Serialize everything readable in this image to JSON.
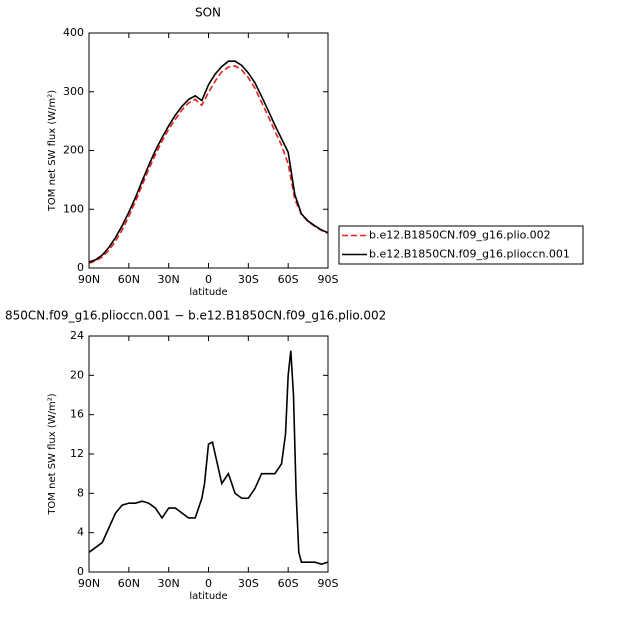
{
  "chart_data": [
    {
      "type": "line",
      "title": "SON",
      "xlabel": "latitude",
      "ylabel": "TOM net SW flux (W/m²)",
      "x": [
        90,
        85,
        80,
        75,
        70,
        65,
        60,
        55,
        50,
        45,
        40,
        35,
        30,
        25,
        20,
        15,
        10,
        5,
        0,
        -5,
        -10,
        -15,
        -20,
        -25,
        -30,
        -35,
        -40,
        -45,
        -50,
        -55,
        -60,
        -65,
        -70,
        -75,
        -80,
        -85,
        -90
      ],
      "series": [
        {
          "name": "b.e12.B1850CN.f09_g16.plio.002",
          "color": "#e8211c",
          "style": "dashed",
          "values": [
            8,
            12,
            19,
            30,
            46,
            65,
            88,
            113,
            141,
            168,
            193,
            216,
            236,
            253,
            269,
            281,
            287,
            277,
            299,
            318,
            334,
            342,
            344,
            337,
            324,
            306,
            282,
            258,
            233,
            209,
            177,
            117,
            91,
            79,
            71,
            64,
            59
          ]
        },
        {
          "name": "b.e12.B1850CN.f09_g16.plioccn.001",
          "color": "#000000",
          "style": "solid",
          "values": [
            10,
            14,
            22,
            35,
            52,
            72,
            95,
            120,
            148,
            175,
            200,
            222,
            242,
            260,
            275,
            287,
            293,
            285,
            312,
            330,
            343,
            352,
            352,
            345,
            332,
            315,
            292,
            268,
            243,
            220,
            197,
            125,
            92,
            80,
            72,
            65,
            60
          ]
        }
      ],
      "xlim": [
        90,
        -90
      ],
      "xticks": [
        {
          "value": 90,
          "label": "90N"
        },
        {
          "value": 60,
          "label": "60N"
        },
        {
          "value": 30,
          "label": "30N"
        },
        0,
        {
          "value": -30,
          "label": "30S"
        },
        {
          "value": -60,
          "label": "60S"
        },
        {
          "value": -90,
          "label": "90S"
        }
      ],
      "ylim": [
        0,
        400
      ],
      "yticks": [
        0,
        100,
        200,
        300,
        400
      ],
      "legend": "outside-right"
    },
    {
      "type": "line",
      "title": "850CN.f09_g16.plioccn.001 − b.e12.B1850CN.f09_g16.plio.002",
      "xlabel": "latitude",
      "ylabel": "TOM net SW flux (W/m²)",
      "x": [
        90,
        85,
        80,
        75,
        70,
        65,
        60,
        55,
        50,
        45,
        40,
        35,
        30,
        25,
        20,
        15,
        10,
        5,
        3,
        0,
        -3,
        -5,
        -10,
        -15,
        -20,
        -25,
        -30,
        -35,
        -40,
        -45,
        -50,
        -55,
        -58,
        -60,
        -62,
        -64,
        -66,
        -68,
        -70,
        -75,
        -80,
        -85,
        -90
      ],
      "series": [
        {
          "color": "#000000",
          "style": "solid",
          "values": [
            2,
            2.5,
            3,
            4.5,
            6,
            6.8,
            7,
            7,
            7.2,
            7,
            6.5,
            5.5,
            6.5,
            6.5,
            6,
            5.5,
            5.5,
            7.5,
            9,
            13,
            13.2,
            12,
            9,
            10,
            8,
            7.5,
            7.5,
            8.5,
            10,
            10,
            10,
            11,
            14,
            20,
            22.5,
            18,
            8,
            2,
            1,
            1,
            1,
            0.8,
            1
          ]
        }
      ],
      "xlim": [
        90,
        -90
      ],
      "xticks": [
        {
          "value": 90,
          "label": "90N"
        },
        {
          "value": 60,
          "label": "60N"
        },
        {
          "value": 30,
          "label": "30N"
        },
        0,
        {
          "value": -30,
          "label": "30S"
        },
        {
          "value": -60,
          "label": "60S"
        },
        {
          "value": -90,
          "label": "90S"
        }
      ],
      "ylim": [
        0,
        24
      ],
      "yticks": [
        0,
        4,
        8,
        12,
        16,
        20,
        24
      ]
    }
  ]
}
